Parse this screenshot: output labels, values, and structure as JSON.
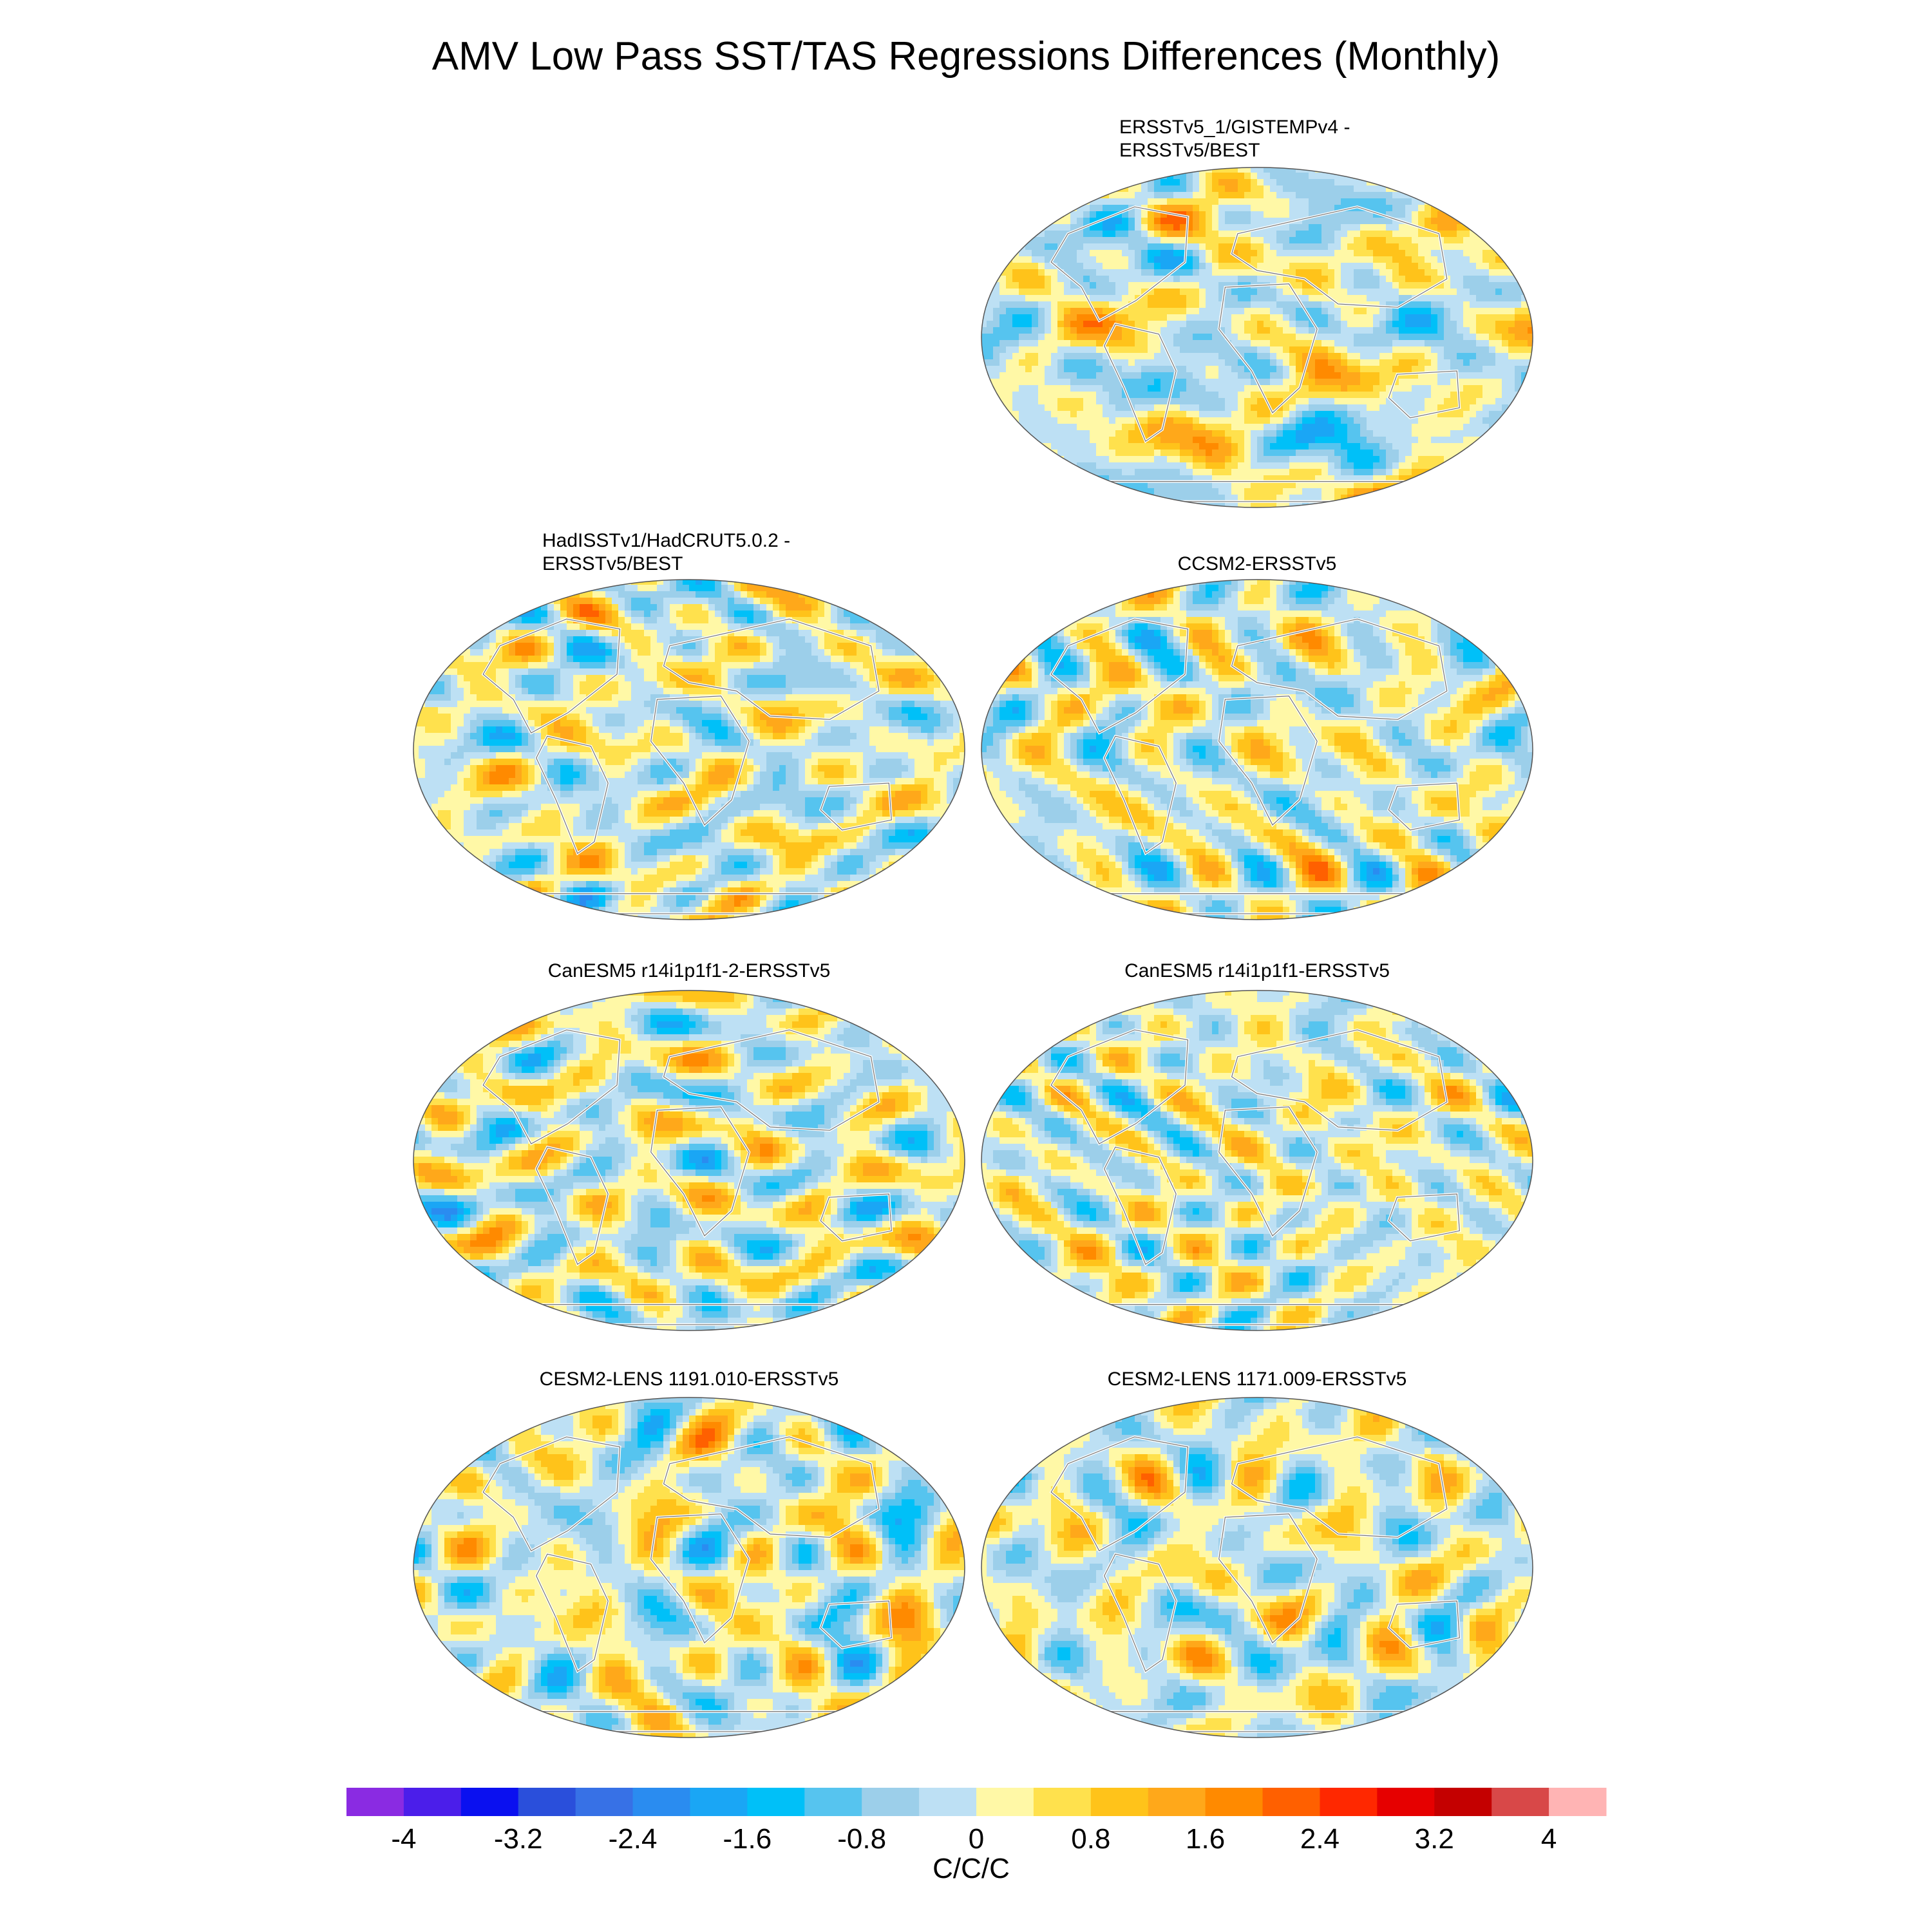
{
  "title": "AMV Low Pass SST/TAS Regressions Differences (Monthly)",
  "colorbar": {
    "label": "C/C/C",
    "tick_labels": [
      "-4",
      "-3.2",
      "-2.4",
      "-1.6",
      "-0.8",
      "0",
      "0.8",
      "1.6",
      "2.4",
      "3.2",
      "4"
    ],
    "colors": [
      "#8a2be2",
      "#4b1eea",
      "#0a10f0",
      "#2a4fdb",
      "#3771e6",
      "#2a8cf0",
      "#1aa6f5",
      "#00c0f8",
      "#56c4ef",
      "#9ccfea",
      "#bde0f4",
      "#fff8a6",
      "#ffe14d",
      "#ffc31a",
      "#ffa81a",
      "#ff8a00",
      "#ff6000",
      "#ff2800",
      "#e60000",
      "#c40000",
      "#d84848",
      "#ffb4b4"
    ]
  },
  "chart_data": [
    {
      "type": "heatmap",
      "title": "ERSSTv5_1/GISTEMPv4 - ERSSTv5/BEST",
      "title_lines": [
        "ERSSTv5_1/GISTEMPv4 -",
        "ERSSTv5/BEST"
      ],
      "projection": "Robinson",
      "clim": [
        -4,
        4
      ]
    },
    {
      "type": "heatmap",
      "title": "HadISSTv1/HadCRUT5.0.2 - ERSSTv5/BEST",
      "title_lines": [
        "HadISSTv1/HadCRUT5.0.2 -",
        "ERSSTv5/BEST"
      ],
      "projection": "Robinson",
      "clim": [
        -4,
        4
      ]
    },
    {
      "type": "heatmap",
      "title": "CCSM2-ERSSTv5",
      "title_lines": [
        "CCSM2-ERSSTv5"
      ],
      "projection": "Robinson",
      "clim": [
        -4,
        4
      ]
    },
    {
      "type": "heatmap",
      "title": "CanESM5 r14i1p1f1-2-ERSSTv5",
      "title_lines": [
        "CanESM5 r14i1p1f1-2-ERSSTv5"
      ],
      "projection": "Robinson",
      "clim": [
        -4,
        4
      ]
    },
    {
      "type": "heatmap",
      "title": "CanESM5 r14i1p1f1-ERSSTv5",
      "title_lines": [
        "CanESM5 r14i1p1f1-ERSSTv5"
      ],
      "projection": "Robinson",
      "clim": [
        -4,
        4
      ]
    },
    {
      "type": "heatmap",
      "title": "CESM2-LENS 1191.010-ERSSTv5",
      "title_lines": [
        "CESM2-LENS 1191.010-ERSSTv5"
      ],
      "projection": "Robinson",
      "clim": [
        -4,
        4
      ]
    },
    {
      "type": "heatmap",
      "title": "CESM2-LENS 1171.009-ERSSTv5",
      "title_lines": [
        "CESM2-LENS 1171.009-ERSSTv5"
      ],
      "projection": "Robinson",
      "clim": [
        -4,
        4
      ]
    }
  ]
}
